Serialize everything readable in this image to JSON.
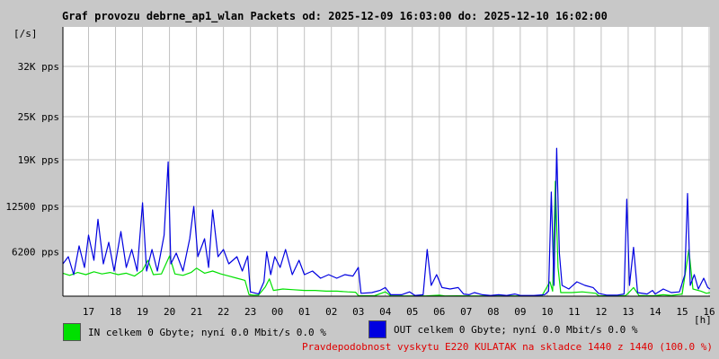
{
  "title": "Graf provozu debrne_ap1_wlan Packets od: 2025-12-09 16:03:00 do: 2025-12-10 16:02:00",
  "legend": {
    "in_label": "IN celkem 0 Gbyte; nyní   0.0 Mbit/s 0.0 %",
    "out_label": "OUT celkem 0 Gbyte; nyní   0.0 Mbit/s 0.0 %"
  },
  "note": "Pravdepodobnost vyskytu E220 KULATAK na skladce 1440 z 1440 (100.0 %)",
  "colors": {
    "background": "#c8c8c8",
    "plot": "#ffffff",
    "in": "#00e000",
    "out": "#0000e0",
    "grid": "#c0c0c0",
    "note": "#e00000"
  },
  "chart_data": {
    "type": "line",
    "title": "Graf provozu debrne_ap1_wlan Packets od: 2025-12-09 16:03:00 do: 2025-12-10 16:02:00",
    "ylabel": "[/s]",
    "xlabel": "[h]",
    "ylim": [
      0,
      37500
    ],
    "y_ticks": [
      {
        "value": 6200,
        "label": "6200 pps"
      },
      {
        "value": 12500,
        "label": "12500 pps"
      },
      {
        "value": 19000,
        "label": "19K pps"
      },
      {
        "value": 25000,
        "label": "25K pps"
      },
      {
        "value": 32000,
        "label": "32K pps"
      }
    ],
    "x_range_hours": [
      16.05,
      40.0333
    ],
    "x_ticks": [
      {
        "hour": 17,
        "label": "17"
      },
      {
        "hour": 18,
        "label": "18"
      },
      {
        "hour": 19,
        "label": "19"
      },
      {
        "hour": 20,
        "label": "20"
      },
      {
        "hour": 21,
        "label": "21"
      },
      {
        "hour": 22,
        "label": "22"
      },
      {
        "hour": 23,
        "label": "23"
      },
      {
        "hour": 24,
        "label": "00"
      },
      {
        "hour": 25,
        "label": "01"
      },
      {
        "hour": 26,
        "label": "02"
      },
      {
        "hour": 27,
        "label": "03"
      },
      {
        "hour": 28,
        "label": "04"
      },
      {
        "hour": 29,
        "label": "05"
      },
      {
        "hour": 30,
        "label": "06"
      },
      {
        "hour": 31,
        "label": "07"
      },
      {
        "hour": 32,
        "label": "08"
      },
      {
        "hour": 33,
        "label": "09"
      },
      {
        "hour": 34,
        "label": "10"
      },
      {
        "hour": 35,
        "label": "11"
      },
      {
        "hour": 36,
        "label": "12"
      },
      {
        "hour": 37,
        "label": "13"
      },
      {
        "hour": 38,
        "label": "14"
      },
      {
        "hour": 39,
        "label": "15"
      },
      {
        "hour": 40,
        "label": "16"
      }
    ],
    "grid": true,
    "series": [
      {
        "name": "IN",
        "points": [
          [
            16.05,
            3200
          ],
          [
            16.3,
            2900
          ],
          [
            16.6,
            3300
          ],
          [
            16.9,
            3000
          ],
          [
            17.2,
            3400
          ],
          [
            17.5,
            3100
          ],
          [
            17.8,
            3300
          ],
          [
            18.1,
            3000
          ],
          [
            18.4,
            3200
          ],
          [
            18.7,
            2800
          ],
          [
            19.0,
            3600
          ],
          [
            19.2,
            5000
          ],
          [
            19.4,
            3000
          ],
          [
            19.7,
            3100
          ],
          [
            20.0,
            5600
          ],
          [
            20.2,
            3100
          ],
          [
            20.5,
            2900
          ],
          [
            20.8,
            3300
          ],
          [
            21.0,
            3900
          ],
          [
            21.3,
            3200
          ],
          [
            21.6,
            3500
          ],
          [
            21.9,
            3100
          ],
          [
            22.2,
            2800
          ],
          [
            22.5,
            2500
          ],
          [
            22.8,
            2200
          ],
          [
            22.95,
            200
          ],
          [
            23.1,
            150
          ],
          [
            23.3,
            150
          ],
          [
            23.55,
            1300
          ],
          [
            23.7,
            2400
          ],
          [
            23.85,
            800
          ],
          [
            24.2,
            1000
          ],
          [
            24.6,
            900
          ],
          [
            25.0,
            800
          ],
          [
            25.4,
            800
          ],
          [
            25.8,
            700
          ],
          [
            26.2,
            700
          ],
          [
            26.6,
            600
          ],
          [
            26.9,
            550
          ],
          [
            27.0,
            80
          ],
          [
            27.6,
            60
          ],
          [
            28.0,
            600
          ],
          [
            28.2,
            50
          ],
          [
            28.8,
            40
          ],
          [
            29.0,
            40
          ],
          [
            29.2,
            50
          ],
          [
            29.5,
            40
          ],
          [
            30.0,
            150
          ],
          [
            30.2,
            40
          ],
          [
            30.8,
            50
          ],
          [
            31.1,
            40
          ],
          [
            31.8,
            40
          ],
          [
            32.0,
            40
          ],
          [
            32.8,
            40
          ],
          [
            33.0,
            40
          ],
          [
            33.8,
            40
          ],
          [
            34.1,
            2000
          ],
          [
            34.2,
            700
          ],
          [
            34.3,
            16000
          ],
          [
            34.4,
            4000
          ],
          [
            34.5,
            500
          ],
          [
            34.9,
            500
          ],
          [
            35.3,
            600
          ],
          [
            35.8,
            400
          ],
          [
            35.9,
            60
          ],
          [
            36.5,
            50
          ],
          [
            36.9,
            80
          ],
          [
            37.0,
            400
          ],
          [
            37.2,
            1200
          ],
          [
            37.4,
            100
          ],
          [
            37.7,
            60
          ],
          [
            38.0,
            80
          ],
          [
            38.3,
            200
          ],
          [
            38.6,
            100
          ],
          [
            39.0,
            300
          ],
          [
            39.25,
            6500
          ],
          [
            39.4,
            1000
          ],
          [
            39.7,
            700
          ],
          [
            39.9,
            400
          ],
          [
            40.033,
            500
          ]
        ]
      },
      {
        "name": "OUT",
        "points": [
          [
            16.05,
            4500
          ],
          [
            16.25,
            5500
          ],
          [
            16.45,
            3000
          ],
          [
            16.65,
            7000
          ],
          [
            16.85,
            4000
          ],
          [
            17.0,
            8500
          ],
          [
            17.2,
            5000
          ],
          [
            17.35,
            10700
          ],
          [
            17.55,
            4500
          ],
          [
            17.75,
            7500
          ],
          [
            17.95,
            3500
          ],
          [
            18.2,
            9000
          ],
          [
            18.4,
            4000
          ],
          [
            18.6,
            6500
          ],
          [
            18.8,
            3500
          ],
          [
            19.0,
            13000
          ],
          [
            19.15,
            3500
          ],
          [
            19.35,
            6500
          ],
          [
            19.55,
            3500
          ],
          [
            19.8,
            8500
          ],
          [
            19.95,
            18700
          ],
          [
            20.05,
            4500
          ],
          [
            20.25,
            6000
          ],
          [
            20.5,
            3500
          ],
          [
            20.75,
            8000
          ],
          [
            20.9,
            12500
          ],
          [
            21.05,
            5500
          ],
          [
            21.3,
            8000
          ],
          [
            21.45,
            4000
          ],
          [
            21.6,
            12000
          ],
          [
            21.8,
            5500
          ],
          [
            22.0,
            6500
          ],
          [
            22.2,
            4500
          ],
          [
            22.5,
            5500
          ],
          [
            22.7,
            3500
          ],
          [
            22.9,
            5600
          ],
          [
            23.0,
            600
          ],
          [
            23.3,
            300
          ],
          [
            23.5,
            2000
          ],
          [
            23.6,
            6200
          ],
          [
            23.75,
            3000
          ],
          [
            23.9,
            5500
          ],
          [
            24.1,
            4000
          ],
          [
            24.3,
            6500
          ],
          [
            24.55,
            3000
          ],
          [
            24.8,
            5000
          ],
          [
            25.0,
            3000
          ],
          [
            25.3,
            3500
          ],
          [
            25.6,
            2500
          ],
          [
            25.9,
            3000
          ],
          [
            26.2,
            2500
          ],
          [
            26.5,
            3000
          ],
          [
            26.8,
            2800
          ],
          [
            27.0,
            4000
          ],
          [
            27.1,
            400
          ],
          [
            27.5,
            500
          ],
          [
            27.8,
            800
          ],
          [
            28.0,
            1200
          ],
          [
            28.2,
            200
          ],
          [
            28.6,
            200
          ],
          [
            28.9,
            600
          ],
          [
            29.1,
            100
          ],
          [
            29.4,
            200
          ],
          [
            29.55,
            6500
          ],
          [
            29.7,
            1500
          ],
          [
            29.9,
            3000
          ],
          [
            30.1,
            1200
          ],
          [
            30.4,
            1000
          ],
          [
            30.7,
            1200
          ],
          [
            30.9,
            300
          ],
          [
            31.1,
            200
          ],
          [
            31.3,
            500
          ],
          [
            31.6,
            200
          ],
          [
            31.9,
            100
          ],
          [
            32.2,
            200
          ],
          [
            32.5,
            100
          ],
          [
            32.8,
            300
          ],
          [
            33.0,
            100
          ],
          [
            33.5,
            100
          ],
          [
            33.9,
            200
          ],
          [
            34.05,
            700
          ],
          [
            34.15,
            14500
          ],
          [
            34.25,
            1500
          ],
          [
            34.35,
            20600
          ],
          [
            34.45,
            6000
          ],
          [
            34.55,
            1500
          ],
          [
            34.8,
            1000
          ],
          [
            35.1,
            2000
          ],
          [
            35.4,
            1500
          ],
          [
            35.7,
            1200
          ],
          [
            35.9,
            400
          ],
          [
            36.2,
            150
          ],
          [
            36.6,
            150
          ],
          [
            36.85,
            300
          ],
          [
            36.95,
            13500
          ],
          [
            37.05,
            1500
          ],
          [
            37.2,
            6800
          ],
          [
            37.35,
            500
          ],
          [
            37.7,
            300
          ],
          [
            37.9,
            800
          ],
          [
            38.0,
            300
          ],
          [
            38.3,
            1000
          ],
          [
            38.6,
            500
          ],
          [
            38.9,
            600
          ],
          [
            39.1,
            3000
          ],
          [
            39.2,
            14300
          ],
          [
            39.3,
            1500
          ],
          [
            39.45,
            3000
          ],
          [
            39.6,
            1000
          ],
          [
            39.8,
            2500
          ],
          [
            39.95,
            1200
          ],
          [
            40.033,
            1000
          ]
        ]
      }
    ]
  }
}
